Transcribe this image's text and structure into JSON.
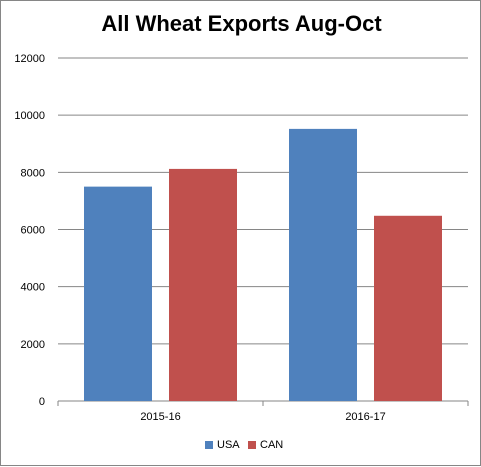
{
  "chart_data": {
    "type": "bar",
    "title": "All Wheat Exports Aug-Oct",
    "xlabel": "",
    "ylabel": "",
    "categories": [
      "2015-16",
      "2016-17"
    ],
    "series": [
      {
        "name": "USA",
        "values": [
          7500,
          9520
        ],
        "color": "#4F81BD"
      },
      {
        "name": "CAN",
        "values": [
          8120,
          6480
        ],
        "color": "#C0504D"
      }
    ],
    "ylim": [
      0,
      12000
    ],
    "yticks": [
      0,
      2000,
      4000,
      6000,
      8000,
      10000,
      12000
    ],
    "grid": true,
    "legend_position": "bottom"
  }
}
